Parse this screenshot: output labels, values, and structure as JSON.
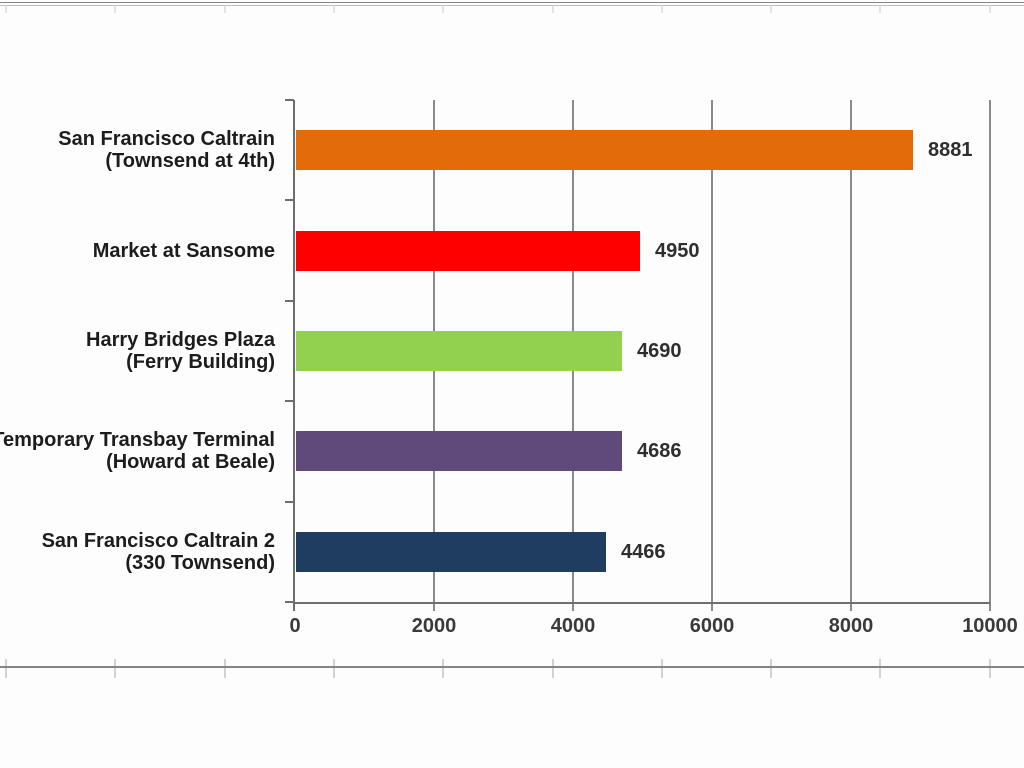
{
  "chart_data": {
    "type": "bar",
    "orientation": "horizontal",
    "categories": [
      "San Francisco Caltrain (Townsend at 4th)",
      "Market at Sansome",
      "Harry Bridges Plaza (Ferry Building)",
      "Temporary Transbay Terminal (Howard at Beale)",
      "San Francisco Caltrain 2 (330 Townsend)"
    ],
    "category_label_lines": [
      [
        "San Francisco Caltrain",
        "(Townsend at 4th)"
      ],
      [
        "Market at Sansome"
      ],
      [
        "Harry Bridges Plaza",
        "(Ferry Building)"
      ],
      [
        "Temporary Transbay Terminal",
        "(Howard at Beale)"
      ],
      [
        "San Francisco Caltrain 2",
        "(330 Townsend)"
      ]
    ],
    "values": [
      8881,
      4950,
      4690,
      4686,
      4466
    ],
    "value_labels": [
      "8881",
      "4950",
      "4690",
      "4686",
      "4466"
    ],
    "bar_colors": [
      "#e36c0a",
      "#fe0000",
      "#92d050",
      "#604a7b",
      "#1f3c61"
    ],
    "xlim": [
      0,
      10000
    ],
    "xticks": [
      0,
      2000,
      4000,
      6000,
      8000,
      10000
    ],
    "xtick_labels": [
      "0",
      "2000",
      "4000",
      "6000",
      "8000",
      "10000"
    ],
    "grid": true,
    "data_labels": true,
    "legend": false
  },
  "style": {
    "background": "#fdfdfd",
    "axis_color": "#6e6e6e",
    "gridline_color": "#8a8a8a",
    "category_label_color": "#1c1c1c",
    "value_label_color": "#2e2e2e",
    "tick_label_color": "#3a3a3a",
    "frame_line_dark": "#848484",
    "frame_line_light": "#bdbdbd",
    "frame_tick_color": "#d2d2d2"
  }
}
